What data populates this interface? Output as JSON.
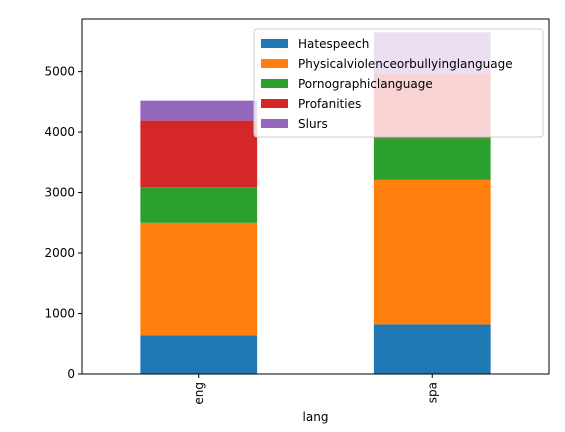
{
  "chart_data": {
    "type": "bar",
    "stacked": true,
    "categories": [
      "eng",
      "spa"
    ],
    "series": [
      {
        "name": "Hatespeech",
        "color": "#1f77b4",
        "values": [
          640,
          820
        ]
      },
      {
        "name": "Physicalviolenceorbullyinglanguage",
        "color": "#ff7f0e",
        "values": [
          1860,
          2390
        ]
      },
      {
        "name": "Pornographiclanguage",
        "color": "#2ca02c",
        "values": [
          590,
          690
        ]
      },
      {
        "name": "Profanities",
        "color": "#d62728",
        "values": [
          1100,
          1060
        ]
      },
      {
        "name": "Slurs",
        "color": "#9467bd",
        "values": [
          330,
          690
        ]
      }
    ],
    "xlabel": "lang",
    "ylabel": "",
    "ylim": [
      0,
      5870
    ],
    "yticks": [
      0,
      1000,
      2000,
      3000,
      4000,
      5000
    ],
    "grid": false,
    "legend_position": "top-right",
    "legend_alpha": 0.8
  }
}
